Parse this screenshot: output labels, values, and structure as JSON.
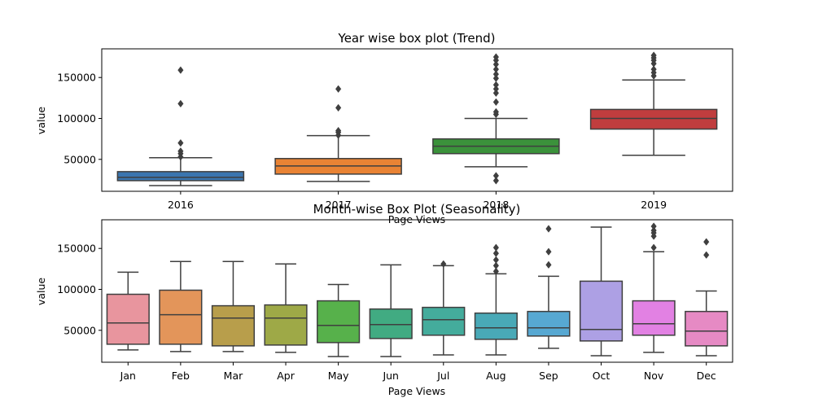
{
  "chart_data": [
    {
      "type": "box",
      "title": "Year wise box plot (Trend)",
      "xlabel": "Page Views",
      "ylabel": "value",
      "ylim": [
        11000,
        185000
      ],
      "yticks": [
        50000,
        100000,
        150000
      ],
      "ytick_labels": [
        "50000",
        "100000",
        "150000"
      ],
      "categories": [
        "2016",
        "2017",
        "2018",
        "2019"
      ],
      "colors": [
        "#3a75af",
        "#e98334",
        "#3b923b",
        "#c03d3e"
      ],
      "boxes": [
        {
          "name": "2016",
          "whislo": 18000,
          "q1": 24000,
          "med": 28000,
          "q3": 35000,
          "whishi": 52000,
          "fliers": [
            53000,
            57000,
            60000,
            70000,
            118000,
            159000
          ]
        },
        {
          "name": "2017",
          "whislo": 23000,
          "q1": 32000,
          "med": 42000,
          "q3": 51000,
          "whishi": 79000,
          "fliers": [
            79500,
            83000,
            85000,
            113000,
            136000
          ]
        },
        {
          "name": "2018",
          "whislo": 41000,
          "q1": 57000,
          "med": 66000,
          "q3": 75000,
          "whishi": 100000,
          "fliers": [
            24000,
            30000,
            105000,
            108000,
            120000,
            131000,
            136000,
            141000,
            149000,
            154000,
            160000,
            166000,
            171000,
            175000
          ]
        },
        {
          "name": "2019",
          "whislo": 55000,
          "q1": 87000,
          "med": 100000,
          "q3": 111000,
          "whishi": 147000,
          "fliers": [
            152000,
            156000,
            160000,
            167000,
            171000,
            174000,
            177000
          ]
        }
      ]
    },
    {
      "type": "box",
      "title": "Month-wise Box Plot (Seasonality)",
      "xlabel": "Page Views",
      "ylabel": "value",
      "ylim": [
        11000,
        185000
      ],
      "yticks": [
        50000,
        100000,
        150000
      ],
      "ytick_labels": [
        "50000",
        "100000",
        "150000"
      ],
      "categories": [
        "Jan",
        "Feb",
        "Mar",
        "Apr",
        "May",
        "Jun",
        "Jul",
        "Aug",
        "Sep",
        "Oct",
        "Nov",
        "Dec"
      ],
      "colors": [
        "#e8959e",
        "#e3955a",
        "#b89e4b",
        "#9ea947",
        "#57b14b",
        "#41ab82",
        "#44ac9c",
        "#49a9b7",
        "#57a8d2",
        "#ada0e4",
        "#e281e3",
        "#e68ac4"
      ],
      "boxes": [
        {
          "name": "Jan",
          "whislo": 26000,
          "q1": 33000,
          "med": 59000,
          "q3": 94000,
          "whishi": 121000,
          "fliers": []
        },
        {
          "name": "Feb",
          "whislo": 24000,
          "q1": 33000,
          "med": 69000,
          "q3": 99000,
          "whishi": 134000,
          "fliers": []
        },
        {
          "name": "Mar",
          "whislo": 24000,
          "q1": 31000,
          "med": 65000,
          "q3": 80000,
          "whishi": 134000,
          "fliers": []
        },
        {
          "name": "Apr",
          "whislo": 23000,
          "q1": 32000,
          "med": 65000,
          "q3": 81000,
          "whishi": 131000,
          "fliers": []
        },
        {
          "name": "May",
          "whislo": 18000,
          "q1": 35000,
          "med": 56000,
          "q3": 86000,
          "whishi": 106000,
          "fliers": []
        },
        {
          "name": "Jun",
          "whislo": 18000,
          "q1": 40000,
          "med": 57000,
          "q3": 76000,
          "whishi": 130000,
          "fliers": []
        },
        {
          "name": "Jul",
          "whislo": 20000,
          "q1": 44000,
          "med": 63000,
          "q3": 78000,
          "whishi": 129000,
          "fliers": [
            131000
          ]
        },
        {
          "name": "Aug",
          "whislo": 20000,
          "q1": 39000,
          "med": 53000,
          "q3": 71000,
          "whishi": 119000,
          "fliers": [
            122000,
            129000,
            136000,
            144000,
            151000
          ]
        },
        {
          "name": "Sep",
          "whislo": 28000,
          "q1": 43000,
          "med": 53000,
          "q3": 73000,
          "whishi": 116000,
          "fliers": [
            130000,
            146000,
            174000
          ]
        },
        {
          "name": "Oct",
          "whislo": 19000,
          "q1": 37000,
          "med": 51000,
          "q3": 110000,
          "whishi": 176000,
          "fliers": []
        },
        {
          "name": "Nov",
          "whislo": 23000,
          "q1": 44000,
          "med": 58000,
          "q3": 86000,
          "whishi": 146000,
          "fliers": [
            151000,
            165000,
            169000,
            172000,
            177000
          ]
        },
        {
          "name": "Dec",
          "whislo": 19000,
          "q1": 31000,
          "med": 49000,
          "q3": 73000,
          "whishi": 98000,
          "fliers": [
            142000,
            158000
          ]
        }
      ]
    }
  ]
}
